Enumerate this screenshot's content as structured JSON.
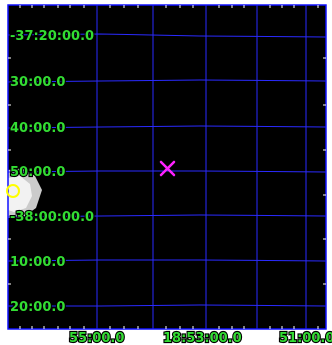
{
  "viewer": {
    "background": "#000000",
    "frame_color": "#1111ff",
    "grid_color": "#2a2aff",
    "label_color": "#33dd33"
  },
  "dec_labels": [
    "-37:20:00.0",
    "30:00.0",
    "40:00.0",
    "50:00.0",
    "-38:00:00.0",
    "10:00.0",
    "20:00.0"
  ],
  "ra_labels": [
    "55:00.0",
    "18:53:00.0",
    "51:00.0"
  ],
  "markers": {
    "cross": {
      "color": "#ff22ff",
      "icon": "x-cross-marker"
    },
    "circle": {
      "color": "#ffff00",
      "icon": "circle-marker"
    }
  },
  "source": {
    "color": "#dcdcdc",
    "icon": "bright-source"
  }
}
